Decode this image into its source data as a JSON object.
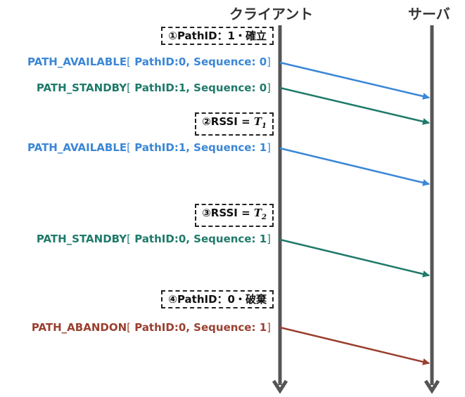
{
  "lifelines": {
    "client": "クライアント",
    "server": "サーバ"
  },
  "colors": {
    "available": "#3a87d6",
    "standby": "#1f7a6a",
    "abandon": "#9b4030",
    "lifeline": "#555555"
  },
  "states": [
    {
      "label": "①PathID：1・確立"
    },
    {
      "prefix": "②RSSI = ",
      "var": "T",
      "sub": "1"
    },
    {
      "prefix": "③RSSI = ",
      "var": "T",
      "sub": "2"
    },
    {
      "label": "④PathID：0・破棄"
    }
  ],
  "messages": [
    {
      "frame": "PATH_AVAILABLE",
      "open": "[",
      "params": " PathID:0, Sequence: 0",
      "close": "]",
      "kind": "available"
    },
    {
      "frame": "PATH_STANDBY",
      "open": "[",
      "params": " PathID:1, Sequence: 0",
      "close": "]",
      "kind": "standby"
    },
    {
      "frame": "PATH_AVAILABLE",
      "open": "[",
      "params": " PathID:1, Sequence: 1",
      "close": "]",
      "kind": "available"
    },
    {
      "frame": "PATH_STANDBY",
      "open": "[",
      "params": " PathID:0, Sequence: 1",
      "close": "]",
      "kind": "standby"
    },
    {
      "frame": "PATH_ABANDON",
      "open": "[",
      "params": " PathID:0, Sequence: 1",
      "close": "]",
      "kind": "abandon"
    }
  ]
}
